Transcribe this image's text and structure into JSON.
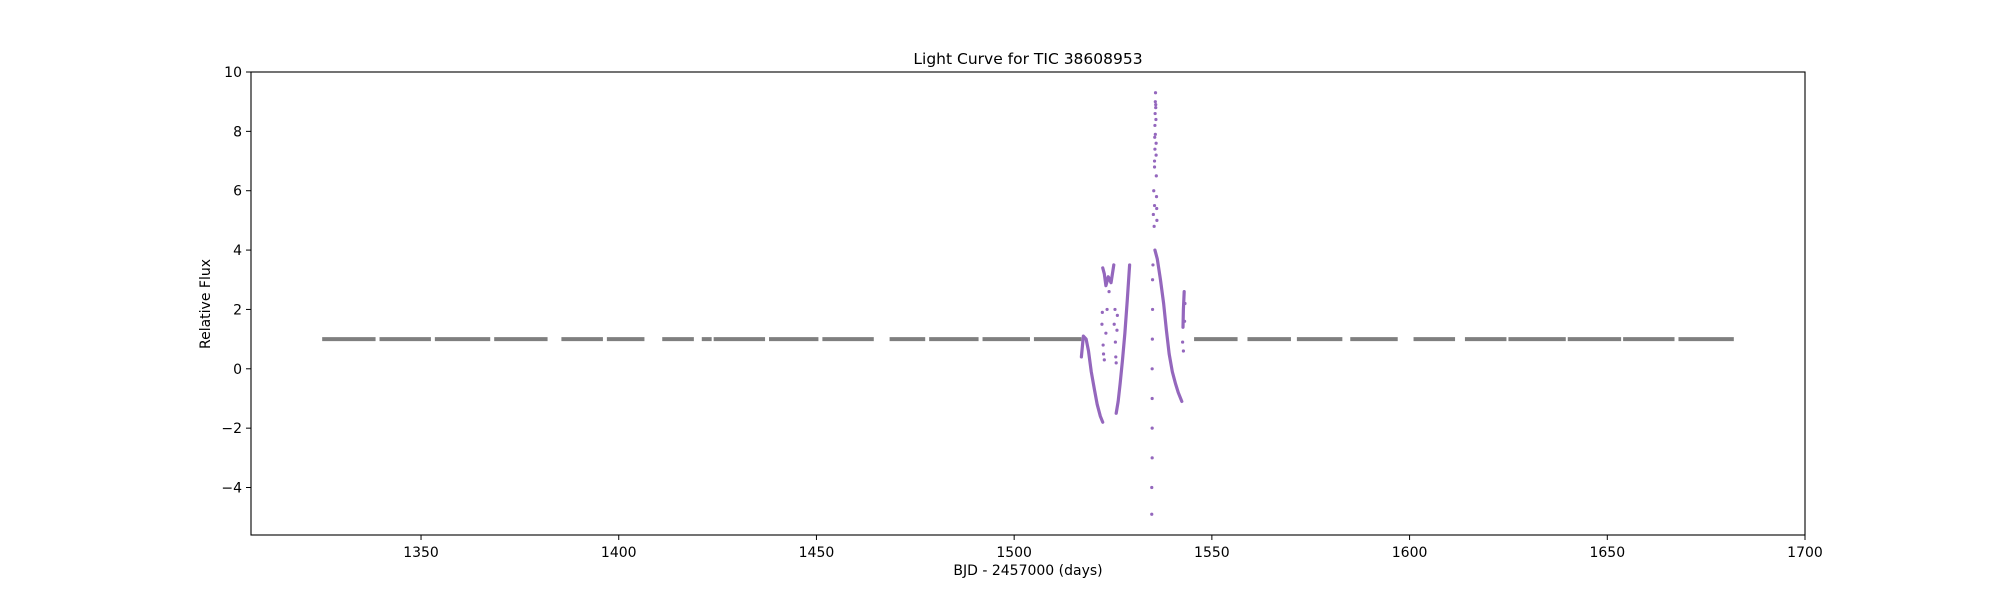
{
  "chart_data": {
    "type": "scatter",
    "title": "Light Curve for TIC 38608953",
    "xlabel": "BJD - 2457000 (days)",
    "ylabel": "Relative Flux",
    "xlim": [
      1307,
      1700
    ],
    "ylim": [
      -5.6,
      10
    ],
    "xticks": [
      1350,
      1400,
      1450,
      1500,
      1550,
      1600,
      1650,
      1700
    ],
    "yticks": [
      -4,
      -2,
      0,
      2,
      4,
      6,
      8,
      10
    ],
    "grid": false,
    "legend": "none",
    "colors": {
      "normal": "#7f7f7f",
      "active": "#9467bd"
    },
    "series": [
      {
        "style": "segments",
        "color": "#7f7f7f",
        "flux": 1.0,
        "x_ranges": [
          [
            1325,
            1338.5
          ],
          [
            1339.5,
            1352.5
          ],
          [
            1353.5,
            1367.5
          ],
          [
            1368.5,
            1382
          ],
          [
            1385.5,
            1396
          ],
          [
            1397,
            1406.5
          ],
          [
            1411,
            1419
          ],
          [
            1421,
            1423.5
          ],
          [
            1424,
            1437
          ],
          [
            1438,
            1450.5
          ],
          [
            1451.5,
            1464.5
          ],
          [
            1468.5,
            1477.5
          ],
          [
            1478.5,
            1491
          ],
          [
            1492,
            1504
          ],
          [
            1505,
            1517
          ],
          [
            1545.5,
            1556.5
          ],
          [
            1559,
            1570
          ],
          [
            1571.5,
            1583
          ],
          [
            1585,
            1597
          ],
          [
            1601,
            1611.5
          ],
          [
            1614,
            1624.5
          ],
          [
            1625,
            1639.5
          ],
          [
            1640,
            1653.5
          ],
          [
            1654,
            1667
          ],
          [
            1668,
            1682
          ]
        ]
      },
      {
        "style": "dense-line",
        "color": "#9467bd",
        "segments": [
          {
            "x": [
              1517,
              1517.5,
              1518.2,
              1518.8,
              1519.5,
              1520.3,
              1521,
              1521.8,
              1522.4
            ],
            "y": [
              0.4,
              1.1,
              1.0,
              0.6,
              -0.1,
              -0.7,
              -1.2,
              -1.6,
              -1.8
            ]
          },
          {
            "x": [
              1522.4,
              1522.8,
              1523.2,
              1523.8,
              1524.5,
              1525.2
            ],
            "y": [
              3.4,
              3.2,
              2.8,
              3.1,
              2.9,
              3.5
            ]
          },
          {
            "x": [
              1525.8,
              1526.3,
              1526.8,
              1527.4,
              1528,
              1528.6,
              1529.2
            ],
            "y": [
              -1.5,
              -1.1,
              -0.5,
              0.3,
              1.2,
              2.3,
              3.5
            ]
          },
          {
            "x": [
              1535.6,
              1536.2,
              1537,
              1537.8,
              1538.5,
              1539.2,
              1540,
              1540.8,
              1541.5,
              1542.4
            ],
            "y": [
              4.0,
              3.7,
              3.0,
              2.2,
              1.3,
              0.5,
              -0.1,
              -0.5,
              -0.8,
              -1.1
            ]
          },
          {
            "x": [
              1542.7,
              1542.8,
              1543.0
            ],
            "y": [
              1.4,
              2.0,
              2.6
            ]
          }
        ]
      },
      {
        "style": "scatter",
        "color": "#9467bd",
        "x": [
          1522.2,
          1522.3,
          1522.5,
          1522.6,
          1522.8,
          1523.2,
          1523.5,
          1524,
          1525.3,
          1525.5,
          1525.6,
          1525.7,
          1525.8,
          1526,
          1526.1,
          1534.8,
          1534.8,
          1534.9,
          1534.9,
          1534.9,
          1534.9,
          1534.95,
          1535,
          1535,
          1535.1,
          1535.2,
          1535.3,
          1535.4,
          1535.5,
          1535.5,
          1535.55,
          1535.6,
          1535.65,
          1535.7,
          1535.75,
          1535.8,
          1535.85,
          1535.9,
          1535.9,
          1535.95,
          1536,
          1536.05,
          1536.1,
          1535.7,
          1535.8,
          1535.5,
          1535.6,
          1542.6,
          1542.8,
          1543.1,
          1543.2
        ],
        "y": [
          1.5,
          1.9,
          0.8,
          0.5,
          0.3,
          1.2,
          2.0,
          2.6,
          1.5,
          2.0,
          0.9,
          0.4,
          0.2,
          1.3,
          1.8,
          -4.9,
          -4.0,
          -3.0,
          -2.0,
          -1.0,
          0.0,
          1.0,
          2.0,
          3.0,
          3.5,
          5.2,
          6.0,
          4.8,
          5.5,
          7.0,
          7.8,
          8.2,
          8.6,
          9.0,
          9.3,
          8.9,
          8.4,
          7.6,
          7.2,
          6.5,
          5.8,
          5.4,
          5.0,
          7.9,
          8.8,
          6.8,
          7.4,
          0.9,
          0.6,
          1.6,
          2.2
        ]
      }
    ]
  }
}
